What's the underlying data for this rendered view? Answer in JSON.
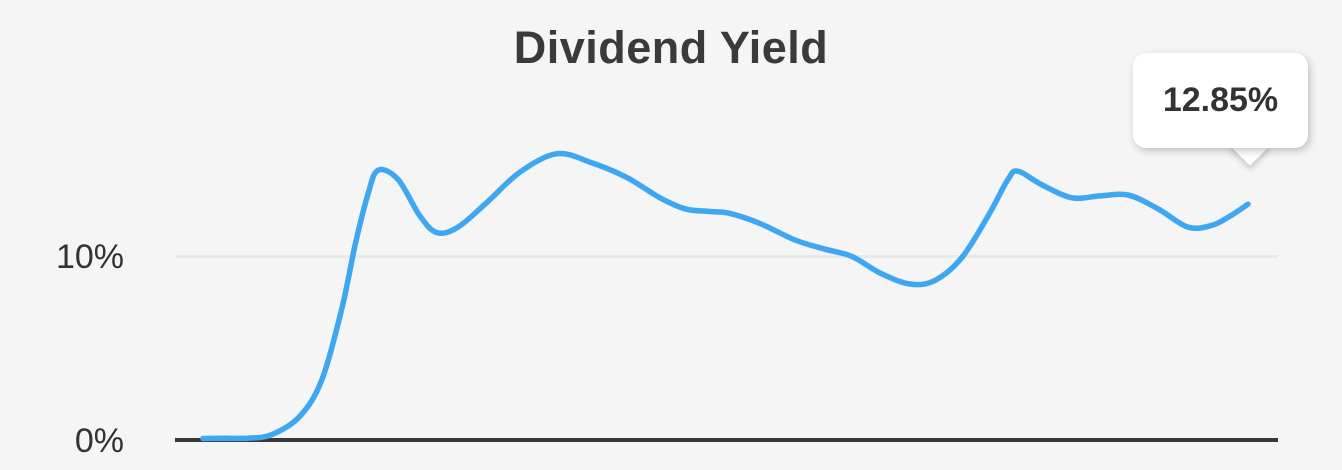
{
  "header": {
    "title": "Dividend Yield"
  },
  "tooltip": {
    "value": "12.85%"
  },
  "colors": {
    "background": "#f5f5f6",
    "line": "#3ea7f2",
    "gridline": "#e9e9e9",
    "axis": "#383838",
    "title_text": "#3a3a3a",
    "label_text": "#333333",
    "tooltip_bg": "#ffffff",
    "tooltip_text": "#333333"
  },
  "chart_data": {
    "type": "line",
    "title": "Dividend Yield",
    "xlabel": "",
    "ylabel": "",
    "x_tick_labels": [],
    "y_ticks": [
      {
        "label": "0%",
        "value": 0
      },
      {
        "label": "10%",
        "value": 10
      }
    ],
    "ylim": [
      0,
      16
    ],
    "grid": "single horizontal gridline at 10%",
    "legend": "none",
    "annotations": [
      {
        "type": "callout-tooltip",
        "text": "12.85%",
        "attached_to": "last point of series"
      }
    ],
    "series": [
      {
        "name": "Dividend Yield",
        "final_value_label": "12.85%",
        "x_unit": "px",
        "y_unit": "percent",
        "points": [
          [
            203,
            0.08
          ],
          [
            225,
            0.1
          ],
          [
            248,
            0.1
          ],
          [
            272,
            0.3
          ],
          [
            300,
            1.3
          ],
          [
            322,
            3.3
          ],
          [
            342,
            7.2
          ],
          [
            355,
            10.6
          ],
          [
            368,
            13.4
          ],
          [
            378,
            14.7
          ],
          [
            398,
            14.2
          ],
          [
            420,
            12.2
          ],
          [
            437,
            11.3
          ],
          [
            458,
            11.6
          ],
          [
            488,
            13.0
          ],
          [
            520,
            14.6
          ],
          [
            557,
            15.6
          ],
          [
            592,
            15.1
          ],
          [
            627,
            14.3
          ],
          [
            660,
            13.2
          ],
          [
            685,
            12.6
          ],
          [
            710,
            12.45
          ],
          [
            730,
            12.35
          ],
          [
            760,
            11.8
          ],
          [
            795,
            10.9
          ],
          [
            825,
            10.4
          ],
          [
            852,
            10.0
          ],
          [
            880,
            9.1
          ],
          [
            910,
            8.5
          ],
          [
            935,
            8.7
          ],
          [
            962,
            9.95
          ],
          [
            988,
            12.2
          ],
          [
            1008,
            14.2
          ],
          [
            1018,
            14.65
          ],
          [
            1042,
            13.9
          ],
          [
            1072,
            13.2
          ],
          [
            1100,
            13.3
          ],
          [
            1128,
            13.35
          ],
          [
            1158,
            12.6
          ],
          [
            1188,
            11.6
          ],
          [
            1212,
            11.7
          ],
          [
            1230,
            12.2
          ],
          [
            1248,
            12.85
          ]
        ]
      }
    ]
  }
}
